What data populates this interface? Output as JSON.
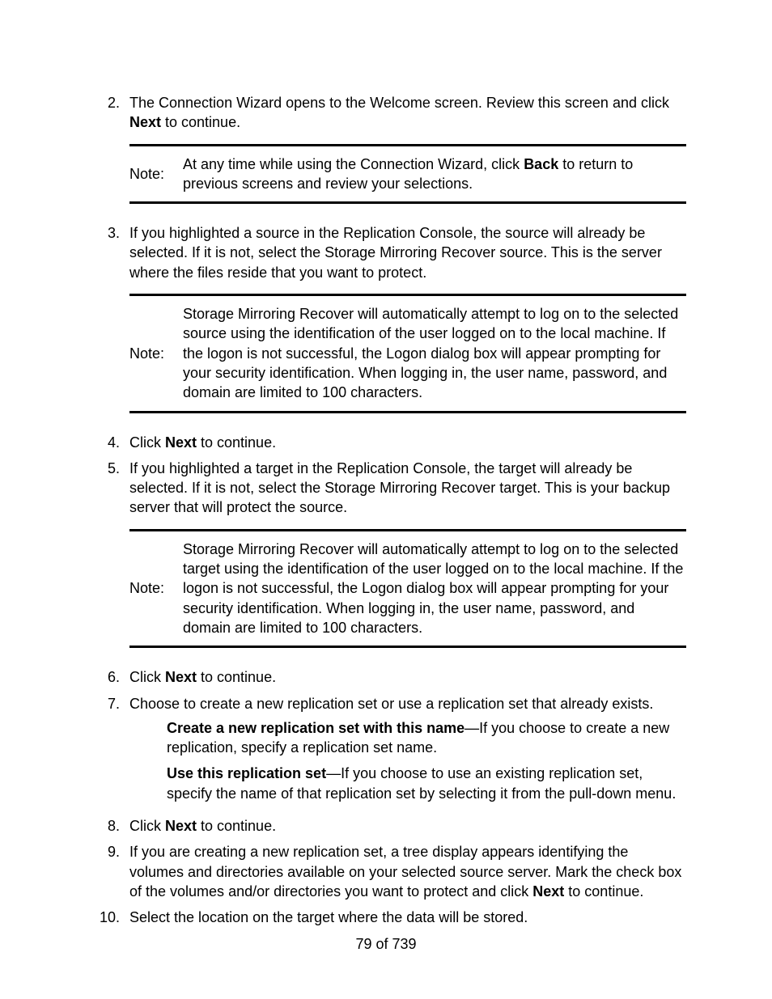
{
  "steps": {
    "s2": {
      "num": "2.",
      "text_a": "The Connection Wizard opens to the Welcome screen. Review this screen and click ",
      "bold": "Next",
      "text_b": " to continue.",
      "note": {
        "label": "Note:",
        "text_a": "At any time while using the Connection Wizard, click ",
        "bold": "Back",
        "text_b": " to return to previous screens and review your selections."
      }
    },
    "s3": {
      "num": "3.",
      "text": "If you highlighted a source in the Replication Console, the source will already be selected. If it is not, select the Storage Mirroring Recover source. This is the server where the files reside that you want to protect.",
      "note": {
        "label": "Note:",
        "text": "Storage Mirroring Recover will automatically attempt to log on to the selected source using the identification of the user logged on to the local machine. If the logon is not successful, the Logon dialog box will appear prompting for your security identification. When logging in, the user name, password, and domain are limited to 100 characters."
      }
    },
    "s4": {
      "num": "4.",
      "text_a": "Click ",
      "bold": "Next",
      "text_b": " to continue."
    },
    "s5": {
      "num": "5.",
      "text": "If you highlighted a target in the Replication Console, the target will already be selected. If it is not, select the Storage Mirroring Recover target. This is your backup server that will protect the source.",
      "note": {
        "label": "Note:",
        "text": "Storage Mirroring Recover will automatically attempt to log on to the selected target using the identification of the user logged on to the local machine. If the logon is not successful, the Logon dialog box will appear prompting for your security identification. When logging in, the user name, password, and domain are limited to 100 characters."
      }
    },
    "s6": {
      "num": "6.",
      "text_a": "Click ",
      "bold": "Next",
      "text_b": " to continue."
    },
    "s7": {
      "num": "7.",
      "text": "Choose to create a new replication set or use a replication set that already exists.",
      "sub1": {
        "bold": "Create a new replication set with this name",
        "text": "—If you choose to create a new replication, specify a replication set name."
      },
      "sub2": {
        "bold": "Use this replication set",
        "text": "—If you choose to use an existing replication set, specify the name of that replication set by selecting it from the pull-down menu."
      }
    },
    "s8": {
      "num": "8.",
      "text_a": "Click ",
      "bold": "Next",
      "text_b": " to continue."
    },
    "s9": {
      "num": "9.",
      "text_a": "If you are creating a new replication set, a tree display appears identifying the volumes and directories available on your selected source server. Mark the check box of the volumes and/or directories you want to protect and click ",
      "bold": "Next",
      "text_b": " to continue."
    },
    "s10": {
      "num": "10.",
      "text": "Select the location on the target where the data will be stored."
    }
  },
  "footer": "79 of 739"
}
